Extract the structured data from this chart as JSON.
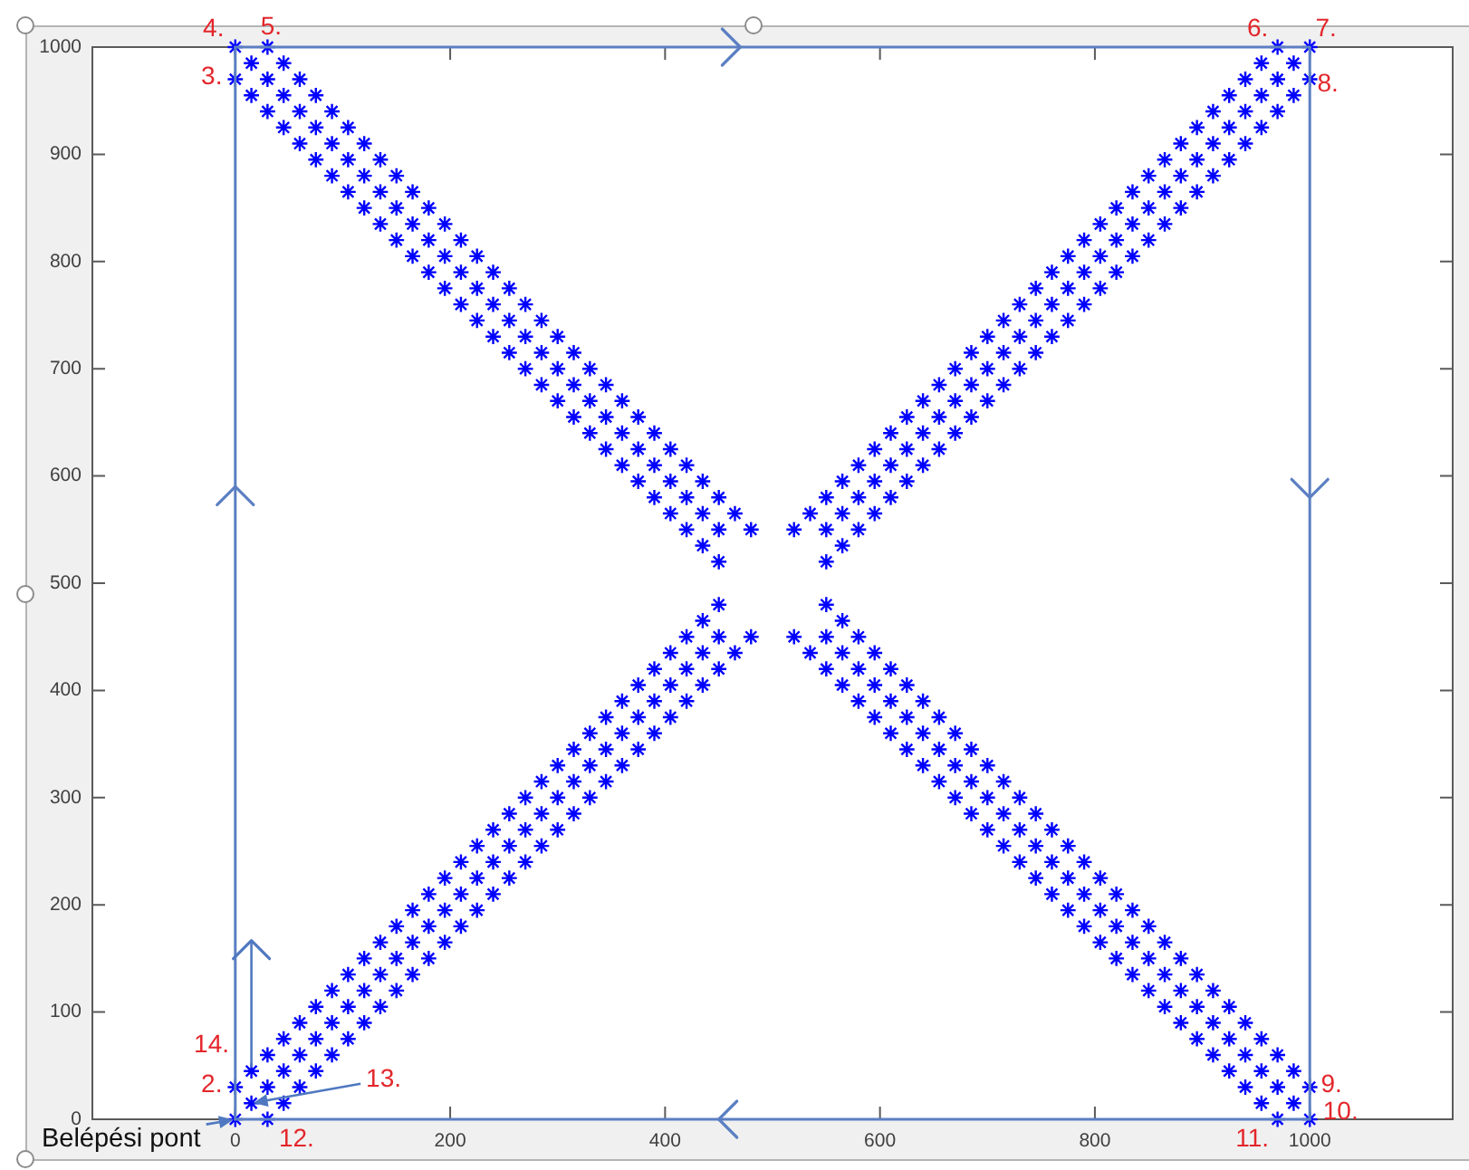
{
  "chart_data": {
    "type": "scatter",
    "xlim": [
      -133,
      1133
    ],
    "ylim": [
      0,
      1000
    ],
    "xticks": [
      0,
      200,
      400,
      600,
      800,
      1000
    ],
    "yticks": [
      0,
      100,
      200,
      300,
      400,
      500,
      600,
      700,
      800,
      900,
      1000
    ],
    "annotations": [
      {
        "text": "Belépési pont",
        "x": 0,
        "y": 0
      },
      {
        "text": "2.",
        "x": 0,
        "y": 30
      },
      {
        "text": "3.",
        "x": 0,
        "y": 970
      },
      {
        "text": "4.",
        "x": 0,
        "y": 1000
      },
      {
        "text": "5.",
        "x": 30,
        "y": 1000
      },
      {
        "text": "6.",
        "x": 970,
        "y": 1000
      },
      {
        "text": "7.",
        "x": 1000,
        "y": 1000
      },
      {
        "text": "8.",
        "x": 1000,
        "y": 970
      },
      {
        "text": "9.",
        "x": 1000,
        "y": 30
      },
      {
        "text": "10.",
        "x": 1000,
        "y": 0
      },
      {
        "text": "11.",
        "x": 970,
        "y": 0
      },
      {
        "text": "12.",
        "x": 30,
        "y": 0
      },
      {
        "text": "13.",
        "x": 15,
        "y": 15
      },
      {
        "text": "14.",
        "x": 15,
        "y": 45
      }
    ],
    "series": [
      {
        "type": "scatter",
        "color": "#0000ff",
        "marker": "cross",
        "x": [
          0,
          30,
          15,
          45,
          0,
          30,
          60,
          15,
          45,
          75,
          30,
          60,
          90,
          45,
          75,
          105,
          60,
          90,
          120,
          75,
          105,
          135,
          90,
          120,
          150,
          105,
          135,
          165,
          120,
          150,
          180,
          135,
          165,
          195,
          150,
          180,
          210,
          165,
          195,
          225,
          180,
          210,
          240,
          195,
          225,
          255,
          210,
          240,
          270,
          225,
          255,
          285,
          240,
          270,
          300,
          255,
          285,
          315,
          270,
          300,
          330,
          285,
          315,
          345,
          300,
          330,
          360,
          315,
          345,
          375,
          330,
          360,
          390,
          345,
          375,
          405,
          360,
          390,
          420,
          375,
          405,
          435,
          390,
          420,
          450,
          405,
          435,
          465,
          420,
          450,
          480,
          435,
          450
        ],
        "values": [
          1000,
          1000,
          985,
          985,
          970,
          970,
          970,
          955,
          955,
          955,
          940,
          940,
          940,
          925,
          925,
          925,
          910,
          910,
          910,
          895,
          895,
          895,
          880,
          880,
          880,
          865,
          865,
          865,
          850,
          850,
          850,
          835,
          835,
          835,
          820,
          820,
          820,
          805,
          805,
          805,
          790,
          790,
          790,
          775,
          775,
          775,
          760,
          760,
          760,
          745,
          745,
          745,
          730,
          730,
          730,
          715,
          715,
          715,
          700,
          700,
          700,
          685,
          685,
          685,
          670,
          670,
          670,
          655,
          655,
          655,
          640,
          640,
          640,
          625,
          625,
          625,
          610,
          610,
          610,
          595,
          595,
          595,
          580,
          580,
          580,
          565,
          565,
          565,
          550,
          550,
          550,
          535,
          520
        ]
      },
      {
        "type": "scatter",
        "color": "#0000ff",
        "marker": "cross",
        "x": [
          1000,
          970,
          985,
          955,
          1000,
          970,
          940,
          985,
          955,
          925,
          970,
          940,
          910,
          955,
          925,
          895,
          940,
          910,
          880,
          925,
          895,
          865,
          910,
          880,
          850,
          895,
          865,
          835,
          880,
          850,
          820,
          865,
          835,
          805,
          850,
          820,
          790,
          835,
          805,
          775,
          820,
          790,
          760,
          805,
          775,
          745,
          790,
          760,
          730,
          775,
          745,
          715,
          760,
          730,
          700,
          745,
          715,
          685,
          730,
          700,
          670,
          715,
          685,
          655,
          700,
          670,
          640,
          685,
          655,
          625,
          670,
          640,
          610,
          655,
          625,
          595,
          640,
          610,
          580,
          625,
          595,
          565,
          610,
          580,
          550,
          595,
          565,
          535,
          580,
          550,
          520,
          565,
          550
        ],
        "values": [
          1000,
          1000,
          985,
          985,
          970,
          970,
          970,
          955,
          955,
          955,
          940,
          940,
          940,
          925,
          925,
          925,
          910,
          910,
          910,
          895,
          895,
          895,
          880,
          880,
          880,
          865,
          865,
          865,
          850,
          850,
          850,
          835,
          835,
          835,
          820,
          820,
          820,
          805,
          805,
          805,
          790,
          790,
          790,
          775,
          775,
          775,
          760,
          760,
          760,
          745,
          745,
          745,
          730,
          730,
          730,
          715,
          715,
          715,
          700,
          700,
          700,
          685,
          685,
          685,
          670,
          670,
          670,
          655,
          655,
          655,
          640,
          640,
          640,
          625,
          625,
          625,
          610,
          610,
          610,
          595,
          595,
          595,
          580,
          580,
          580,
          565,
          565,
          565,
          550,
          550,
          550,
          535,
          520
        ]
      },
      {
        "type": "scatter",
        "color": "#0000ff",
        "marker": "cross",
        "x": [
          0,
          30,
          15,
          45,
          0,
          30,
          60,
          15,
          45,
          75,
          30,
          60,
          90,
          45,
          75,
          105,
          60,
          90,
          120,
          75,
          105,
          135,
          90,
          120,
          150,
          105,
          135,
          165,
          120,
          150,
          180,
          135,
          165,
          195,
          150,
          180,
          210,
          165,
          195,
          225,
          180,
          210,
          240,
          195,
          225,
          255,
          210,
          240,
          270,
          225,
          255,
          285,
          240,
          270,
          300,
          255,
          285,
          315,
          270,
          300,
          330,
          285,
          315,
          345,
          300,
          330,
          360,
          315,
          345,
          375,
          330,
          360,
          390,
          345,
          375,
          405,
          360,
          390,
          420,
          375,
          405,
          435,
          390,
          420,
          450,
          405,
          435,
          465,
          420,
          450,
          480,
          435,
          450
        ],
        "values": [
          0,
          0,
          15,
          15,
          30,
          30,
          30,
          45,
          45,
          45,
          60,
          60,
          60,
          75,
          75,
          75,
          90,
          90,
          90,
          105,
          105,
          105,
          120,
          120,
          120,
          135,
          135,
          135,
          150,
          150,
          150,
          165,
          165,
          165,
          180,
          180,
          180,
          195,
          195,
          195,
          210,
          210,
          210,
          225,
          225,
          225,
          240,
          240,
          240,
          255,
          255,
          255,
          270,
          270,
          270,
          285,
          285,
          285,
          300,
          300,
          300,
          315,
          315,
          315,
          330,
          330,
          330,
          345,
          345,
          345,
          360,
          360,
          360,
          375,
          375,
          375,
          390,
          390,
          390,
          405,
          405,
          405,
          420,
          420,
          420,
          435,
          435,
          435,
          450,
          450,
          450,
          465,
          480
        ]
      },
      {
        "type": "scatter",
        "color": "#0000ff",
        "marker": "cross",
        "x": [
          1000,
          970,
          985,
          955,
          1000,
          970,
          940,
          985,
          955,
          925,
          970,
          940,
          910,
          955,
          925,
          895,
          940,
          910,
          880,
          925,
          895,
          865,
          910,
          880,
          850,
          895,
          865,
          835,
          880,
          850,
          820,
          865,
          835,
          805,
          850,
          820,
          790,
          835,
          805,
          775,
          820,
          790,
          760,
          805,
          775,
          745,
          790,
          760,
          730,
          775,
          745,
          715,
          760,
          730,
          700,
          745,
          715,
          685,
          730,
          700,
          670,
          715,
          685,
          655,
          700,
          670,
          640,
          685,
          655,
          625,
          670,
          640,
          610,
          655,
          625,
          595,
          640,
          610,
          580,
          625,
          595,
          565,
          610,
          580,
          550,
          595,
          565,
          535,
          580,
          550,
          520,
          565,
          550
        ],
        "values": [
          0,
          0,
          15,
          15,
          30,
          30,
          30,
          45,
          45,
          45,
          60,
          60,
          60,
          75,
          75,
          75,
          90,
          90,
          90,
          105,
          105,
          105,
          120,
          120,
          120,
          135,
          135,
          135,
          150,
          150,
          150,
          165,
          165,
          165,
          180,
          180,
          180,
          195,
          195,
          195,
          210,
          210,
          210,
          225,
          225,
          225,
          240,
          240,
          240,
          255,
          255,
          255,
          270,
          270,
          270,
          285,
          285,
          285,
          300,
          300,
          300,
          315,
          315,
          315,
          330,
          330,
          330,
          345,
          345,
          345,
          360,
          360,
          360,
          375,
          375,
          375,
          390,
          390,
          390,
          405,
          405,
          405,
          420,
          420,
          420,
          435,
          435,
          435,
          450,
          450,
          450,
          465,
          480
        ]
      }
    ]
  }
}
